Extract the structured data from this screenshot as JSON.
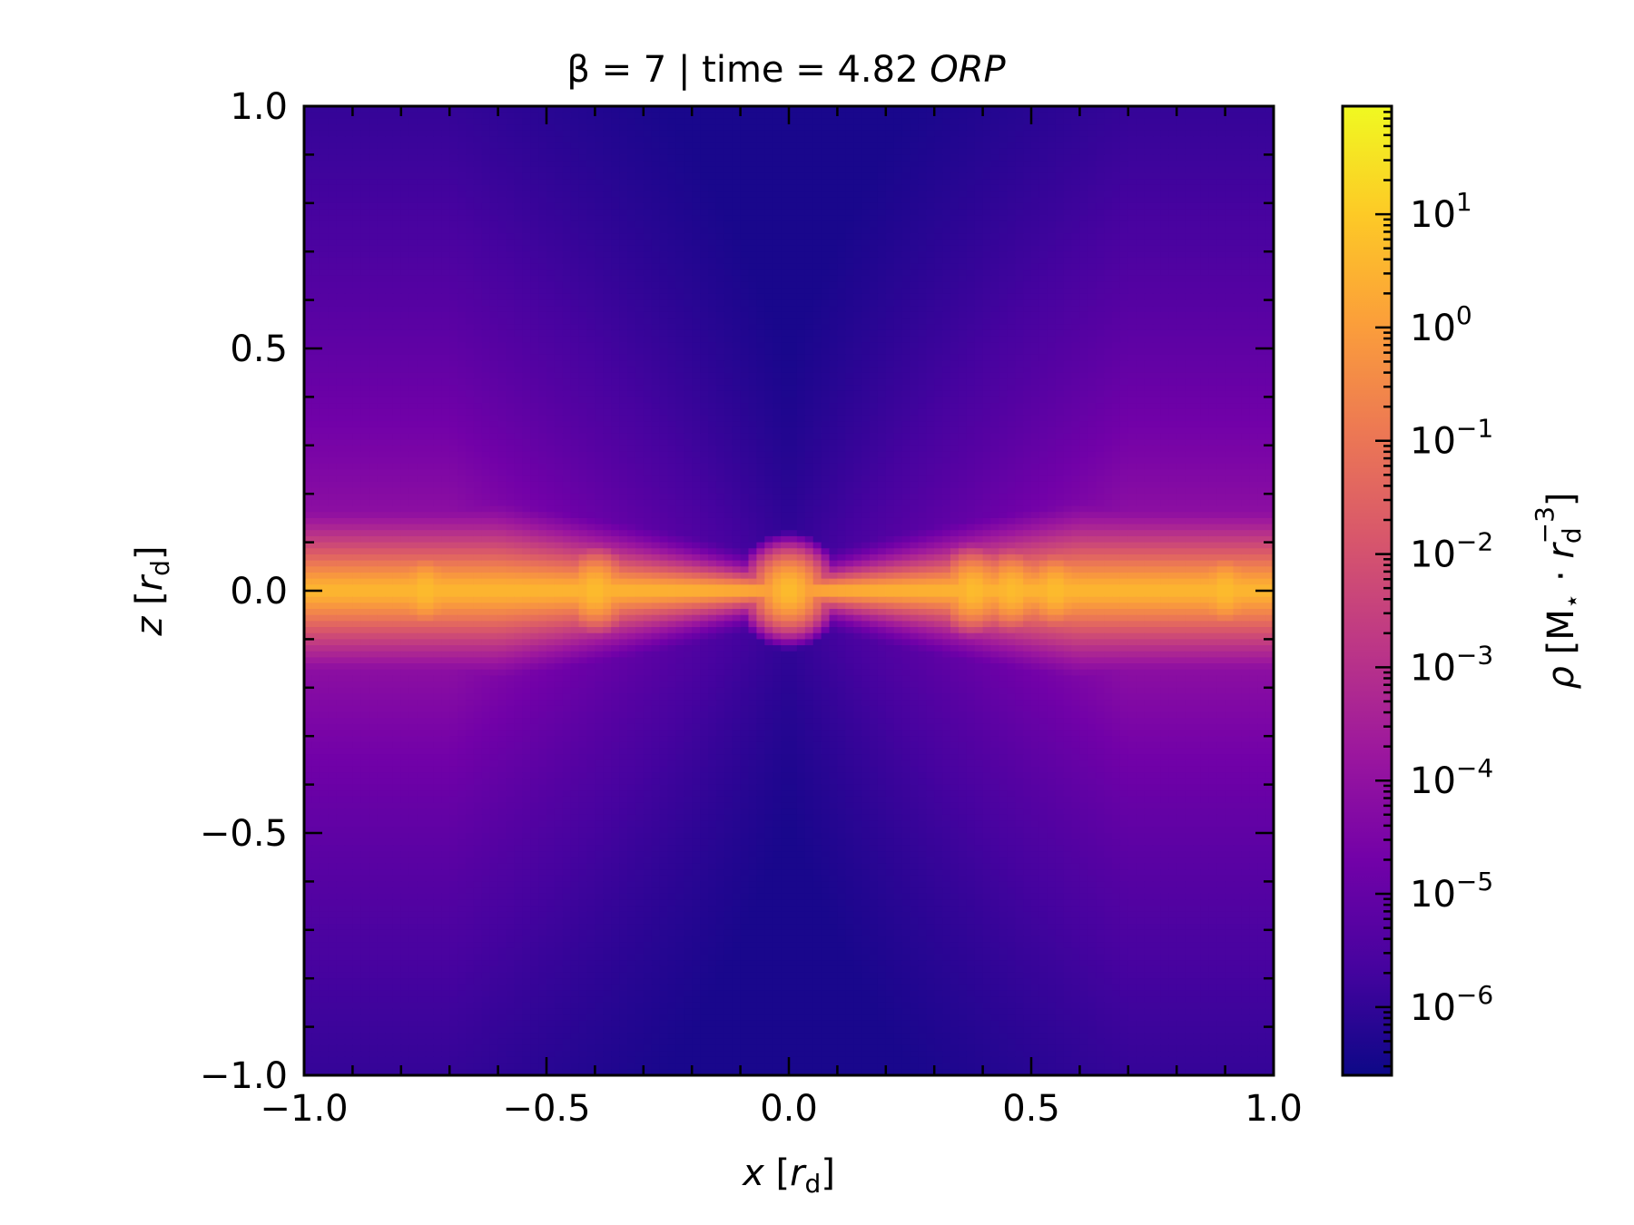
{
  "chart_data": {
    "type": "heatmap",
    "title_parts": {
      "beta": "β = 7",
      "sep": " | time = 4.82 ",
      "unit": "ORP"
    },
    "xlabel": {
      "var": "x",
      "open": "[",
      "r": "r",
      "sub": "d",
      "close": "]"
    },
    "ylabel": {
      "var": "z",
      "open": "[",
      "r": "r",
      "sub": "d",
      "close": "]"
    },
    "xlim": [
      -1.0,
      1.0
    ],
    "ylim": [
      -1.0,
      1.0
    ],
    "x_ticks": [
      -1.0,
      -0.5,
      0.0,
      0.5,
      1.0
    ],
    "x_tick_labels": [
      "−1.0",
      "−0.5",
      "0.0",
      "0.5",
      "1.0"
    ],
    "y_ticks": [
      1.0,
      0.5,
      0.0,
      -0.5,
      -1.0
    ],
    "y_tick_labels": [
      "1.0",
      "0.5",
      "0.0",
      "−0.5",
      "−1.0"
    ],
    "colorbar": {
      "scale": "log",
      "colormap": "plasma",
      "range": [
        2.5e-07,
        90
      ],
      "tick_base": "10",
      "tick_exponents": [
        "1",
        "0",
        "−1",
        "−2",
        "−3",
        "−4",
        "−5",
        "−6"
      ],
      "tick_values_log10": [
        1,
        0,
        -1,
        -2,
        -3,
        -4,
        -5,
        -6
      ],
      "label": {
        "rho": "ρ",
        "open": "[M",
        "star": "⋆",
        "dot": " · ",
        "r": "r",
        "sub": "d",
        "sup": "−3",
        "close": "]"
      }
    },
    "density_model": {
      "description_free": true,
      "midplane_log10": 0.4,
      "floor_log10": -6.4,
      "clumps_x": [
        -0.75,
        -0.4,
        0.0,
        0.38,
        0.46,
        0.55,
        0.9
      ]
    }
  },
  "colors": {
    "plasma": [
      "#0d0887",
      "#46039f",
      "#7201a8",
      "#9c179e",
      "#bd3786",
      "#d8576b",
      "#ed7953",
      "#fb9f3a",
      "#fdca26",
      "#f0f921"
    ]
  }
}
